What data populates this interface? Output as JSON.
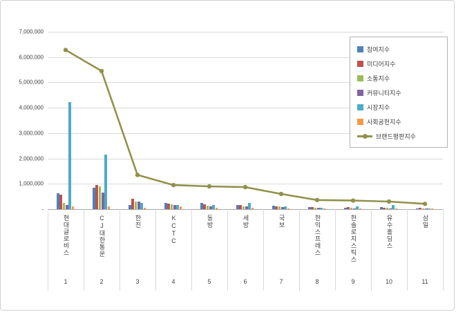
{
  "chart_data": {
    "type": "bar+line",
    "title": "",
    "categories": [
      "현대글로비스",
      "CJ대한통운",
      "한진",
      "KCTC",
      "동방",
      "세방",
      "국보",
      "한익스프레스",
      "한솔로지스틱스",
      "유수홀딩스",
      "삼일"
    ],
    "category_numbers": [
      "1",
      "2",
      "3",
      "4",
      "5",
      "6",
      "7",
      "8",
      "9",
      "10",
      "11"
    ],
    "ylim": [
      0,
      7000000
    ],
    "grid": true,
    "legend_position": "right-inside",
    "y_ticks": [
      {
        "label": "7,000,000",
        "value": 7000000
      },
      {
        "label": "6,000,000",
        "value": 6000000
      },
      {
        "label": "5,000,000",
        "value": 5000000
      },
      {
        "label": "4,000,000",
        "value": 4000000
      },
      {
        "label": "3,000,000",
        "value": 3000000
      },
      {
        "label": "2,000,000",
        "value": 2000000
      },
      {
        "label": "1,000,000",
        "value": 1000000
      },
      {
        "label": "-",
        "value": 0
      }
    ],
    "series": [
      {
        "name": "참여지수",
        "color": "#4F81BD",
        "values": [
          620000,
          850000,
          160000,
          240000,
          250000,
          160000,
          140000,
          70000,
          60000,
          90000,
          40000
        ]
      },
      {
        "name": "미디어지수",
        "color": "#C0504D",
        "values": [
          560000,
          950000,
          400000,
          210000,
          200000,
          160000,
          120000,
          90000,
          70000,
          60000,
          50000
        ]
      },
      {
        "name": "소통지수",
        "color": "#9BBB59",
        "values": [
          260000,
          900000,
          310000,
          190000,
          150000,
          120000,
          100000,
          60000,
          50000,
          50000,
          40000
        ]
      },
      {
        "name": "커뮤니티지수",
        "color": "#8064A2",
        "values": [
          160000,
          660000,
          300000,
          160000,
          120000,
          100000,
          90000,
          50000,
          40000,
          40000,
          30000
        ]
      },
      {
        "name": "시장지수",
        "color": "#4BACC6",
        "values": [
          4220000,
          2150000,
          260000,
          160000,
          160000,
          260000,
          110000,
          60000,
          110000,
          160000,
          40000
        ]
      },
      {
        "name": "사회공헌지수",
        "color": "#F79646",
        "values": [
          100000,
          100000,
          60000,
          110000,
          60000,
          60000,
          40000,
          30000,
          20000,
          30000,
          20000
        ]
      }
    ],
    "line_series": {
      "name": "브랜드평판지수",
      "color": "#91914C",
      "values": [
        6280000,
        5450000,
        1350000,
        950000,
        900000,
        870000,
        600000,
        360000,
        340000,
        300000,
        210000
      ]
    }
  }
}
